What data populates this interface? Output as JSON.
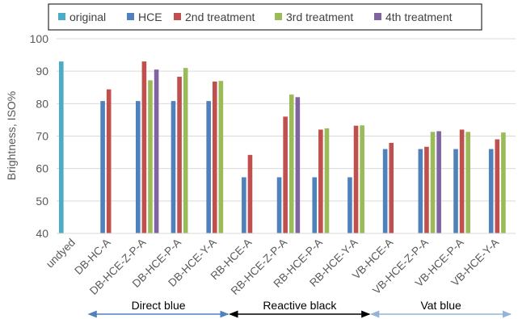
{
  "chart_data": {
    "type": "bar",
    "title": "",
    "xlabel": "",
    "ylabel": "Brightness, ISO%",
    "ylim": [
      40,
      100
    ],
    "yticks": [
      40,
      50,
      60,
      70,
      80,
      90,
      100
    ],
    "grid": true,
    "legend_position": "top",
    "categories": [
      "undyed",
      "DB-HC-A",
      "DB-HCE-Z-P-A",
      "DB-HCE-P-A",
      "DB-HCE-Y-A",
      "RB-HCE-A",
      "RB-HCE-Z-P-A",
      "RB-HCE-P-A",
      "RB-HCE-Y-A",
      "VB-HCE-A",
      "VB-HCE-Z-P-A",
      "VB-HCE-P-A",
      "VB-HCE-Y-A"
    ],
    "series": [
      {
        "name": "original",
        "color": "#4bacc6",
        "values": [
          93,
          null,
          null,
          null,
          null,
          null,
          null,
          null,
          null,
          null,
          null,
          null,
          null
        ]
      },
      {
        "name": "HCE",
        "color": "#4f81bd",
        "values": [
          null,
          80.8,
          80.8,
          80.8,
          80.8,
          57.3,
          57.3,
          57.3,
          57.3,
          66.0,
          66.0,
          66.0,
          66.0
        ]
      },
      {
        "name": "2nd treatment",
        "color": "#c0504d",
        "values": [
          null,
          84.4,
          93.0,
          88.3,
          86.8,
          64.2,
          76.0,
          72.0,
          73.2,
          67.9,
          66.7,
          72.0,
          69.0
        ]
      },
      {
        "name": "3rd treatment",
        "color": "#9bbb59",
        "values": [
          null,
          null,
          87.2,
          91.0,
          87.0,
          null,
          82.8,
          72.4,
          73.3,
          null,
          71.3,
          71.3,
          71.1
        ]
      },
      {
        "name": "4th treatment",
        "color": "#8064a2",
        "values": [
          null,
          null,
          90.5,
          null,
          null,
          null,
          82.0,
          null,
          null,
          null,
          71.5,
          null,
          null
        ]
      }
    ],
    "groups": [
      {
        "label": "Direct blue",
        "color": "#4f81bd",
        "from": 1,
        "to": 4
      },
      {
        "label": "Reactive black",
        "color": "#000000",
        "from": 5,
        "to": 8
      },
      {
        "label": "Vat blue",
        "color": "#95b3d7",
        "from": 9,
        "to": 12
      }
    ]
  }
}
